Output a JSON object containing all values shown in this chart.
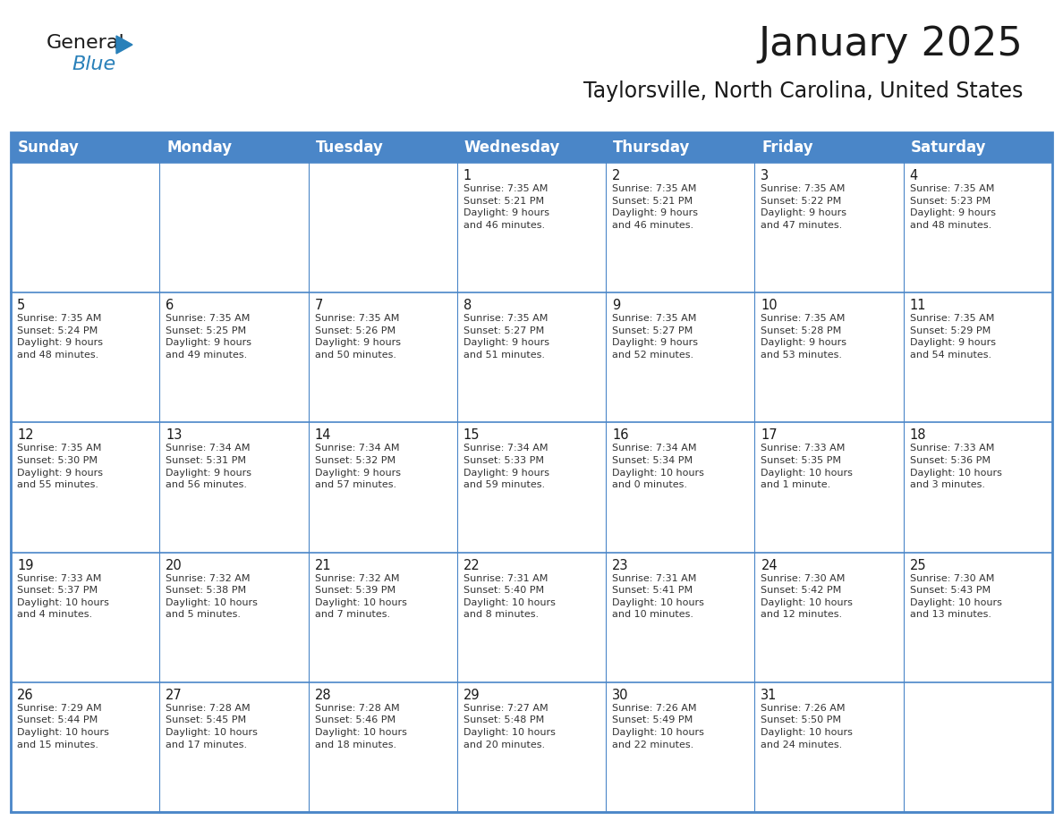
{
  "title": "January 2025",
  "subtitle": "Taylorsville, North Carolina, United States",
  "header_bg": "#4a86c8",
  "header_text_color": "#ffffff",
  "border_color": "#4a86c8",
  "cell_bg": "#ffffff",
  "text_color": "#333333",
  "day_headers": [
    "Sunday",
    "Monday",
    "Tuesday",
    "Wednesday",
    "Thursday",
    "Friday",
    "Saturday"
  ],
  "weeks": [
    [
      {
        "day": "",
        "info": ""
      },
      {
        "day": "",
        "info": ""
      },
      {
        "day": "",
        "info": ""
      },
      {
        "day": "1",
        "info": "Sunrise: 7:35 AM\nSunset: 5:21 PM\nDaylight: 9 hours\nand 46 minutes."
      },
      {
        "day": "2",
        "info": "Sunrise: 7:35 AM\nSunset: 5:21 PM\nDaylight: 9 hours\nand 46 minutes."
      },
      {
        "day": "3",
        "info": "Sunrise: 7:35 AM\nSunset: 5:22 PM\nDaylight: 9 hours\nand 47 minutes."
      },
      {
        "day": "4",
        "info": "Sunrise: 7:35 AM\nSunset: 5:23 PM\nDaylight: 9 hours\nand 48 minutes."
      }
    ],
    [
      {
        "day": "5",
        "info": "Sunrise: 7:35 AM\nSunset: 5:24 PM\nDaylight: 9 hours\nand 48 minutes."
      },
      {
        "day": "6",
        "info": "Sunrise: 7:35 AM\nSunset: 5:25 PM\nDaylight: 9 hours\nand 49 minutes."
      },
      {
        "day": "7",
        "info": "Sunrise: 7:35 AM\nSunset: 5:26 PM\nDaylight: 9 hours\nand 50 minutes."
      },
      {
        "day": "8",
        "info": "Sunrise: 7:35 AM\nSunset: 5:27 PM\nDaylight: 9 hours\nand 51 minutes."
      },
      {
        "day": "9",
        "info": "Sunrise: 7:35 AM\nSunset: 5:27 PM\nDaylight: 9 hours\nand 52 minutes."
      },
      {
        "day": "10",
        "info": "Sunrise: 7:35 AM\nSunset: 5:28 PM\nDaylight: 9 hours\nand 53 minutes."
      },
      {
        "day": "11",
        "info": "Sunrise: 7:35 AM\nSunset: 5:29 PM\nDaylight: 9 hours\nand 54 minutes."
      }
    ],
    [
      {
        "day": "12",
        "info": "Sunrise: 7:35 AM\nSunset: 5:30 PM\nDaylight: 9 hours\nand 55 minutes."
      },
      {
        "day": "13",
        "info": "Sunrise: 7:34 AM\nSunset: 5:31 PM\nDaylight: 9 hours\nand 56 minutes."
      },
      {
        "day": "14",
        "info": "Sunrise: 7:34 AM\nSunset: 5:32 PM\nDaylight: 9 hours\nand 57 minutes."
      },
      {
        "day": "15",
        "info": "Sunrise: 7:34 AM\nSunset: 5:33 PM\nDaylight: 9 hours\nand 59 minutes."
      },
      {
        "day": "16",
        "info": "Sunrise: 7:34 AM\nSunset: 5:34 PM\nDaylight: 10 hours\nand 0 minutes."
      },
      {
        "day": "17",
        "info": "Sunrise: 7:33 AM\nSunset: 5:35 PM\nDaylight: 10 hours\nand 1 minute."
      },
      {
        "day": "18",
        "info": "Sunrise: 7:33 AM\nSunset: 5:36 PM\nDaylight: 10 hours\nand 3 minutes."
      }
    ],
    [
      {
        "day": "19",
        "info": "Sunrise: 7:33 AM\nSunset: 5:37 PM\nDaylight: 10 hours\nand 4 minutes."
      },
      {
        "day": "20",
        "info": "Sunrise: 7:32 AM\nSunset: 5:38 PM\nDaylight: 10 hours\nand 5 minutes."
      },
      {
        "day": "21",
        "info": "Sunrise: 7:32 AM\nSunset: 5:39 PM\nDaylight: 10 hours\nand 7 minutes."
      },
      {
        "day": "22",
        "info": "Sunrise: 7:31 AM\nSunset: 5:40 PM\nDaylight: 10 hours\nand 8 minutes."
      },
      {
        "day": "23",
        "info": "Sunrise: 7:31 AM\nSunset: 5:41 PM\nDaylight: 10 hours\nand 10 minutes."
      },
      {
        "day": "24",
        "info": "Sunrise: 7:30 AM\nSunset: 5:42 PM\nDaylight: 10 hours\nand 12 minutes."
      },
      {
        "day": "25",
        "info": "Sunrise: 7:30 AM\nSunset: 5:43 PM\nDaylight: 10 hours\nand 13 minutes."
      }
    ],
    [
      {
        "day": "26",
        "info": "Sunrise: 7:29 AM\nSunset: 5:44 PM\nDaylight: 10 hours\nand 15 minutes."
      },
      {
        "day": "27",
        "info": "Sunrise: 7:28 AM\nSunset: 5:45 PM\nDaylight: 10 hours\nand 17 minutes."
      },
      {
        "day": "28",
        "info": "Sunrise: 7:28 AM\nSunset: 5:46 PM\nDaylight: 10 hours\nand 18 minutes."
      },
      {
        "day": "29",
        "info": "Sunrise: 7:27 AM\nSunset: 5:48 PM\nDaylight: 10 hours\nand 20 minutes."
      },
      {
        "day": "30",
        "info": "Sunrise: 7:26 AM\nSunset: 5:49 PM\nDaylight: 10 hours\nand 22 minutes."
      },
      {
        "day": "31",
        "info": "Sunrise: 7:26 AM\nSunset: 5:50 PM\nDaylight: 10 hours\nand 24 minutes."
      },
      {
        "day": "",
        "info": ""
      }
    ]
  ],
  "logo_color_general": "#1a1a1a",
  "logo_color_blue": "#2980b9",
  "logo_triangle_color": "#2980b9",
  "title_fontsize": 32,
  "subtitle_fontsize": 17,
  "header_fontsize": 12,
  "day_num_fontsize": 10.5,
  "info_fontsize": 8.0
}
